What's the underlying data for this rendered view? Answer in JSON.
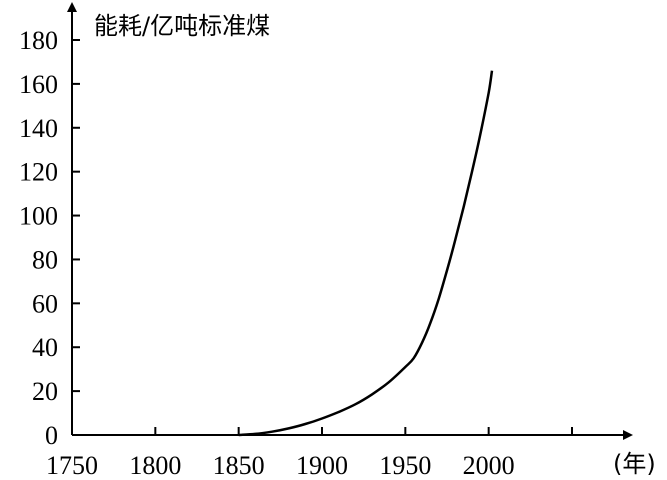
{
  "chart_data": {
    "type": "line",
    "title": "",
    "ylabel": "能耗/亿吨标准煤",
    "xlabel": "(年)",
    "xlim": [
      1750,
      2032
    ],
    "ylim": [
      0,
      190
    ],
    "x_ticks": [
      "1750",
      "1800",
      "1850",
      "1900",
      "1950",
      "2000"
    ],
    "x_tick_values": [
      1750,
      1800,
      1850,
      1900,
      1950,
      2000,
      2050
    ],
    "y_ticks": [
      "0",
      "20",
      "40",
      "60",
      "80",
      "100",
      "120",
      "140",
      "160",
      "180"
    ],
    "y_tick_values": [
      0,
      20,
      40,
      60,
      80,
      100,
      120,
      140,
      160,
      180
    ],
    "grid": false,
    "series": [
      {
        "x": [
          1850,
          1860,
          1870,
          1880,
          1890,
          1900,
          1910,
          1920,
          1930,
          1940,
          1950,
          1955,
          1960,
          1965,
          1970,
          1975,
          1980,
          1985,
          1990,
          1995,
          2000,
          2002
        ],
        "values": [
          0,
          0.5,
          1.5,
          3,
          5,
          7.5,
          10.5,
          14,
          18.5,
          24,
          31,
          35,
          42,
          51,
          62,
          75,
          89,
          104,
          120,
          137,
          156,
          166
        ]
      }
    ]
  }
}
